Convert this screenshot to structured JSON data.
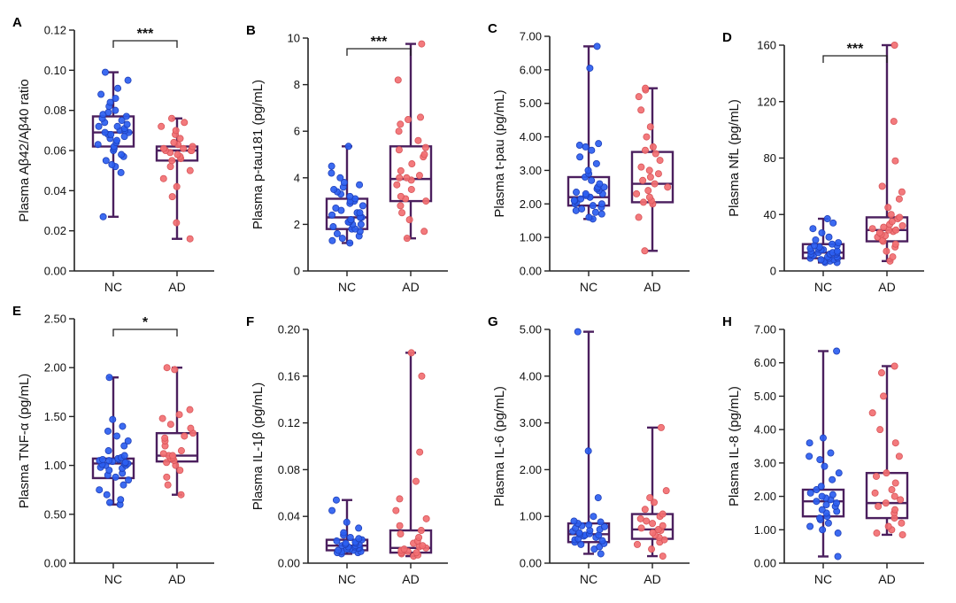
{
  "colors": {
    "box": "#4b1f5e",
    "nc_dot": "#2b5ef0",
    "nc_edge": "#1f3fb8",
    "ad_dot": "#f26f72",
    "ad_edge": "#d85559",
    "axis": "#222222"
  },
  "chart_data": [
    {
      "type": "box",
      "panel": "A",
      "ylabel": "Plasma Aβ42/Aβ40 ratio",
      "categories": [
        "NC",
        "AD"
      ],
      "yticks": [
        "0.00",
        "0.02",
        "0.04",
        "0.06",
        "0.08",
        "0.10",
        "0.12"
      ],
      "ylim": [
        0,
        0.12
      ],
      "significance": "***",
      "boxes": [
        {
          "group": "NC",
          "min": 0.027,
          "q1": 0.062,
          "median": 0.069,
          "q3": 0.077,
          "max": 0.099
        },
        {
          "group": "AD",
          "min": 0.016,
          "q1": 0.055,
          "median": 0.06,
          "q3": 0.062,
          "max": 0.076
        }
      ],
      "points": {
        "NC": [
          0.027,
          0.049,
          0.052,
          0.053,
          0.055,
          0.057,
          0.058,
          0.06,
          0.061,
          0.062,
          0.063,
          0.064,
          0.065,
          0.066,
          0.067,
          0.068,
          0.068,
          0.069,
          0.069,
          0.07,
          0.07,
          0.071,
          0.072,
          0.072,
          0.073,
          0.074,
          0.075,
          0.076,
          0.077,
          0.078,
          0.079,
          0.08,
          0.082,
          0.084,
          0.086,
          0.088,
          0.091,
          0.095,
          0.099
        ],
        "AD": [
          0.016,
          0.024,
          0.037,
          0.042,
          0.046,
          0.05,
          0.052,
          0.055,
          0.056,
          0.057,
          0.058,
          0.059,
          0.06,
          0.06,
          0.06,
          0.061,
          0.061,
          0.062,
          0.063,
          0.064,
          0.066,
          0.068,
          0.07,
          0.072,
          0.074,
          0.076
        ]
      }
    },
    {
      "type": "box",
      "panel": "B",
      "ylabel": "Plasma p-tau181 (pg/mL)",
      "categories": [
        "NC",
        "AD"
      ],
      "yticks": [
        "0",
        "2",
        "4",
        "6",
        "8",
        "10"
      ],
      "ylim": [
        0,
        10
      ],
      "significance": "***",
      "boxes": [
        {
          "group": "NC",
          "min": 1.2,
          "q1": 1.8,
          "median": 2.3,
          "q3": 3.1,
          "max": 5.35
        },
        {
          "group": "AD",
          "min": 1.4,
          "q1": 3.0,
          "median": 3.95,
          "q3": 5.35,
          "max": 9.75
        }
      ],
      "points": {
        "NC": [
          1.2,
          1.3,
          1.4,
          1.5,
          1.6,
          1.7,
          1.8,
          1.8,
          1.9,
          2.0,
          2.0,
          2.1,
          2.1,
          2.2,
          2.2,
          2.3,
          2.3,
          2.4,
          2.5,
          2.5,
          2.6,
          2.7,
          2.8,
          2.9,
          3.0,
          3.0,
          3.1,
          3.2,
          3.3,
          3.4,
          3.5,
          3.6,
          3.7,
          3.8,
          4.0,
          4.2,
          4.5,
          5.35
        ],
        "AD": [
          1.4,
          1.7,
          2.2,
          2.5,
          2.8,
          3.0,
          3.1,
          3.2,
          3.5,
          3.7,
          3.9,
          4.0,
          4.0,
          4.1,
          4.3,
          4.6,
          4.9,
          5.0,
          5.2,
          5.3,
          5.6,
          6.0,
          6.3,
          6.5,
          6.6,
          8.2,
          9.75
        ]
      }
    },
    {
      "type": "box",
      "panel": "C",
      "ylabel": "Plasma t-pau (pg/mL)",
      "categories": [
        "NC",
        "AD"
      ],
      "yticks": [
        "0.00",
        "1.00",
        "2.00",
        "3.00",
        "4.00",
        "5.00",
        "6.00",
        "7.00"
      ],
      "ylim": [
        0,
        7
      ],
      "significance": "",
      "boxes": [
        {
          "group": "NC",
          "min": 1.55,
          "q1": 1.95,
          "median": 2.2,
          "q3": 2.8,
          "max": 6.7
        },
        {
          "group": "AD",
          "min": 0.6,
          "q1": 2.05,
          "median": 2.6,
          "q3": 3.55,
          "max": 5.45
        }
      ],
      "points": {
        "NC": [
          1.55,
          1.6,
          1.7,
          1.75,
          1.8,
          1.85,
          1.9,
          1.95,
          2.0,
          2.0,
          2.05,
          2.1,
          2.1,
          2.15,
          2.2,
          2.2,
          2.25,
          2.3,
          2.3,
          2.35,
          2.4,
          2.45,
          2.5,
          2.5,
          2.6,
          2.7,
          2.8,
          2.9,
          3.0,
          3.2,
          3.4,
          3.6,
          3.7,
          3.75,
          3.8,
          6.05,
          6.7
        ],
        "AD": [
          0.6,
          1.6,
          2.0,
          2.05,
          2.1,
          2.2,
          2.3,
          2.4,
          2.5,
          2.6,
          2.7,
          2.8,
          2.9,
          3.0,
          3.1,
          3.3,
          3.5,
          3.6,
          3.7,
          4.0,
          4.3,
          4.8,
          5.2,
          5.4,
          5.45
        ]
      }
    },
    {
      "type": "box",
      "panel": "D",
      "ylabel": "Plasma NfL  (pg/mL)",
      "categories": [
        "NC",
        "AD"
      ],
      "yticks": [
        "0",
        "40",
        "80",
        "120",
        "160"
      ],
      "ylim": [
        0,
        160
      ],
      "significance": "***",
      "boxes": [
        {
          "group": "NC",
          "min": 6,
          "q1": 9,
          "median": 13,
          "q3": 19,
          "max": 37
        },
        {
          "group": "AD",
          "min": 7,
          "q1": 21,
          "median": 29,
          "q3": 38,
          "max": 160
        }
      ],
      "points": {
        "NC": [
          6,
          6,
          7,
          7,
          8,
          8,
          9,
          9,
          9,
          10,
          10,
          11,
          11,
          12,
          12,
          12,
          13,
          13,
          13,
          14,
          14,
          15,
          15,
          16,
          16,
          17,
          18,
          18,
          19,
          20,
          22,
          24,
          27,
          30,
          34,
          37
        ],
        "AD": [
          7,
          10,
          14,
          17,
          19,
          21,
          22,
          24,
          25,
          26,
          27,
          28,
          29,
          29,
          30,
          31,
          32,
          33,
          35,
          37,
          38,
          40,
          45,
          51,
          56,
          60,
          78,
          106,
          160
        ]
      }
    },
    {
      "type": "box",
      "panel": "E",
      "ylabel": "Plasma TNF-α (pg/mL)",
      "categories": [
        "NC",
        "AD"
      ],
      "yticks": [
        "0.00",
        "0.50",
        "1.00",
        "1.50",
        "2.00",
        "2.50"
      ],
      "ylim": [
        0,
        2.5
      ],
      "significance": "*",
      "boxes": [
        {
          "group": "NC",
          "min": 0.6,
          "q1": 0.87,
          "median": 1.02,
          "q3": 1.07,
          "max": 1.9
        },
        {
          "group": "AD",
          "min": 0.7,
          "q1": 1.04,
          "median": 1.1,
          "q3": 1.33,
          "max": 2.0
        }
      ],
      "points": {
        "NC": [
          0.6,
          0.62,
          0.65,
          0.7,
          0.75,
          0.8,
          0.85,
          0.88,
          0.9,
          0.92,
          0.95,
          0.97,
          0.98,
          1.0,
          1.0,
          1.01,
          1.02,
          1.02,
          1.03,
          1.04,
          1.05,
          1.05,
          1.06,
          1.06,
          1.07,
          1.08,
          1.1,
          1.15,
          1.2,
          1.25,
          1.3,
          1.35,
          1.4,
          1.47,
          1.9
        ],
        "AD": [
          0.7,
          0.8,
          0.88,
          0.95,
          1.0,
          1.03,
          1.05,
          1.07,
          1.08,
          1.1,
          1.1,
          1.12,
          1.15,
          1.2,
          1.25,
          1.28,
          1.3,
          1.33,
          1.38,
          1.42,
          1.48,
          1.52,
          1.57,
          1.98,
          2.0
        ]
      }
    },
    {
      "type": "box",
      "panel": "F",
      "ylabel": "Plasma IL-1β (pg/mL)",
      "categories": [
        "NC",
        "AD"
      ],
      "yticks": [
        "0.00",
        "0.04",
        "0.08",
        "0.12",
        "0.16",
        "0.20"
      ],
      "ylim": [
        0,
        0.2
      ],
      "significance": "",
      "boxes": [
        {
          "group": "NC",
          "min": 0.008,
          "q1": 0.011,
          "median": 0.015,
          "q3": 0.02,
          "max": 0.054
        },
        {
          "group": "AD",
          "min": 0.006,
          "q1": 0.009,
          "median": 0.013,
          "q3": 0.028,
          "max": 0.18
        }
      ],
      "points": {
        "NC": [
          0.008,
          0.009,
          0.009,
          0.01,
          0.01,
          0.011,
          0.011,
          0.012,
          0.012,
          0.013,
          0.013,
          0.014,
          0.014,
          0.015,
          0.015,
          0.016,
          0.016,
          0.017,
          0.017,
          0.018,
          0.019,
          0.02,
          0.021,
          0.022,
          0.024,
          0.026,
          0.03,
          0.035,
          0.045,
          0.054
        ],
        "AD": [
          0.006,
          0.007,
          0.008,
          0.009,
          0.009,
          0.01,
          0.011,
          0.012,
          0.013,
          0.014,
          0.015,
          0.017,
          0.019,
          0.022,
          0.025,
          0.028,
          0.032,
          0.038,
          0.045,
          0.055,
          0.07,
          0.095,
          0.16,
          0.18
        ]
      }
    },
    {
      "type": "box",
      "panel": "G",
      "ylabel": "Plasma IL-6 (pg/mL)",
      "categories": [
        "NC",
        "AD"
      ],
      "yticks": [
        "0.00",
        "1.00",
        "2.00",
        "3.00",
        "4.00",
        "5.00"
      ],
      "ylim": [
        0,
        5
      ],
      "significance": "",
      "boxes": [
        {
          "group": "NC",
          "min": 0.2,
          "q1": 0.45,
          "median": 0.62,
          "q3": 0.85,
          "max": 4.95
        },
        {
          "group": "AD",
          "min": 0.15,
          "q1": 0.52,
          "median": 0.72,
          "q3": 1.05,
          "max": 2.9
        }
      ],
      "points": {
        "NC": [
          0.2,
          0.3,
          0.35,
          0.4,
          0.42,
          0.45,
          0.48,
          0.5,
          0.52,
          0.55,
          0.58,
          0.6,
          0.6,
          0.62,
          0.63,
          0.65,
          0.68,
          0.7,
          0.72,
          0.75,
          0.78,
          0.8,
          0.82,
          0.85,
          0.88,
          0.9,
          1.0,
          1.4,
          2.4,
          4.95
        ],
        "AD": [
          0.15,
          0.3,
          0.4,
          0.45,
          0.5,
          0.55,
          0.6,
          0.65,
          0.7,
          0.72,
          0.75,
          0.8,
          0.85,
          0.9,
          0.95,
          1.0,
          1.05,
          1.15,
          1.3,
          1.4,
          1.55,
          2.9
        ]
      }
    },
    {
      "type": "box",
      "panel": "H",
      "ylabel": "Plasma IL-8 (pg/mL)",
      "categories": [
        "NC",
        "AD"
      ],
      "yticks": [
        "0.00",
        "1.00",
        "2.00",
        "3.00",
        "4.00",
        "5.00",
        "6.00",
        "7.00"
      ],
      "ylim": [
        0,
        7
      ],
      "significance": "",
      "boxes": [
        {
          "group": "NC",
          "min": 0.2,
          "q1": 1.4,
          "median": 1.85,
          "q3": 2.2,
          "max": 6.35
        },
        {
          "group": "AD",
          "min": 0.85,
          "q1": 1.35,
          "median": 1.8,
          "q3": 2.7,
          "max": 5.9
        }
      ],
      "points": {
        "NC": [
          0.2,
          0.9,
          1.0,
          1.1,
          1.2,
          1.3,
          1.35,
          1.4,
          1.5,
          1.55,
          1.6,
          1.7,
          1.75,
          1.8,
          1.85,
          1.9,
          1.95,
          2.0,
          2.05,
          2.1,
          2.2,
          2.3,
          2.5,
          2.7,
          2.9,
          3.1,
          3.2,
          3.3,
          3.6,
          3.75,
          6.35
        ],
        "AD": [
          0.85,
          0.9,
          1.0,
          1.1,
          1.2,
          1.35,
          1.5,
          1.6,
          1.7,
          1.8,
          1.9,
          2.0,
          2.1,
          2.2,
          2.4,
          2.6,
          2.7,
          3.2,
          3.6,
          4.0,
          4.5,
          5.0,
          5.7,
          5.9
        ]
      }
    }
  ]
}
